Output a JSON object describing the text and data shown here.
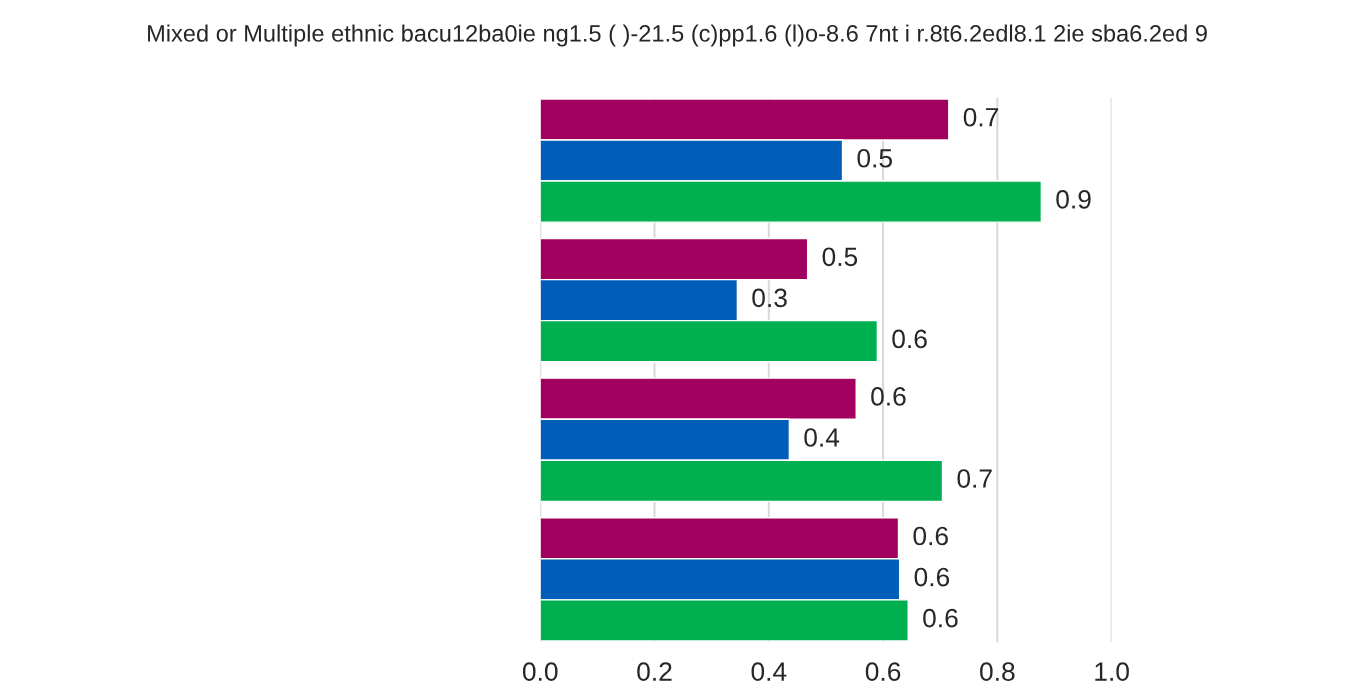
{
  "chart_data": {
    "type": "bar",
    "orientation": "horizontal",
    "title": "Mixed or Multiple ethnic bacu12ba0ie ng1.5 ( )-21.5 (c)pp1.6 (l)o-8.6 7nt i r.8t6.2edl8.1 2ie sba6.2ed 9",
    "categories": [
      null,
      null,
      null,
      null
    ],
    "series": [
      {
        "color": "#a2005f",
        "values": [
          0.715,
          0.468,
          0.553,
          0.627
        ],
        "value_labels": [
          "0.7",
          "0.5",
          "0.6",
          "0.6"
        ]
      },
      {
        "color": "#005eb8",
        "values": [
          0.529,
          0.345,
          0.436,
          0.629
        ],
        "value_labels": [
          "0.5",
          "0.3",
          "0.4",
          "0.6"
        ]
      },
      {
        "color": "#00b050",
        "values": [
          0.877,
          0.59,
          0.704,
          0.644
        ],
        "value_labels": [
          "0.9",
          "0.6",
          "0.7",
          "0.6"
        ]
      }
    ],
    "xlim": [
      0,
      1
    ],
    "xticks": [
      {
        "value": 0,
        "label": "0.0"
      },
      {
        "value": 0.2,
        "label": "0.2"
      },
      {
        "value": 0.4,
        "label": "0.4"
      },
      {
        "value": 0.6,
        "label": "0.6"
      },
      {
        "value": 0.8,
        "label": "0.8"
      },
      {
        "value": 1,
        "label": "1.0"
      }
    ],
    "grid": "x",
    "legend": false
  }
}
